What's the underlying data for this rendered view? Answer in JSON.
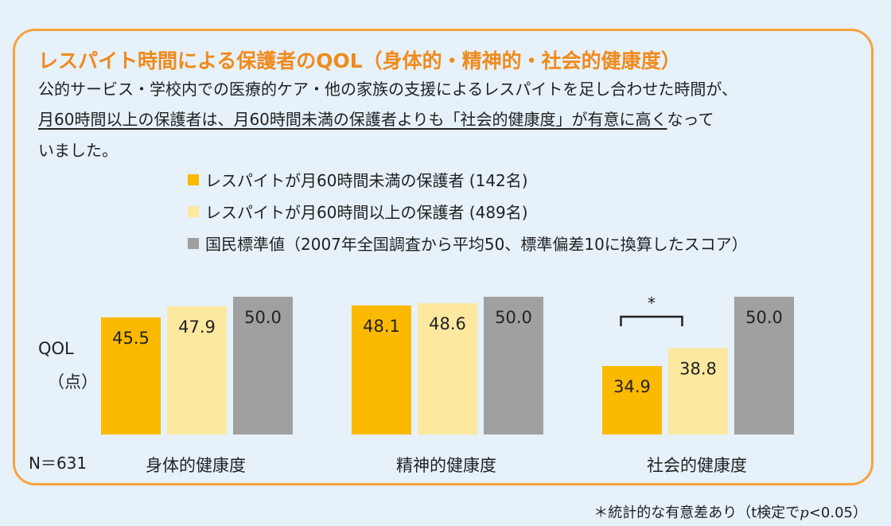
{
  "title": "レスパイト時間による保護者のQOL（身体的・精神的・社会的健康度）",
  "description": {
    "line1": "公的サービス・学校内での医療的ケア・他の家族の支援によるレスパイトを足し合わせた時間が、",
    "line2_underlined": "月60時間以上の保護者は、月60時間未満の保護者よりも「社会的健康度」が有意に高く",
    "line2_rest": "なって",
    "line3": "いました。"
  },
  "y_label_line1": "QOL",
  "y_label_line2": "（点）",
  "n_label": "N＝631",
  "significance_mark": "*",
  "footnote": {
    "prefix": "＊統計的な有意差あり（t検定で",
    "p": "p",
    "suffix": "<0.05）"
  },
  "colors": {
    "title": "#f08a1c",
    "frame": "#f6a33c",
    "series0": "#fbb900",
    "series1": "#fde8a0",
    "series2": "#a0a0a0",
    "background": "#e6f1f9"
  },
  "chart_data": {
    "type": "bar",
    "categories": [
      "身体的健康度",
      "精神的健康度",
      "社会的健康度"
    ],
    "series": [
      {
        "name": "レスパイトが月60時間未満の保護者 (142名)",
        "values": [
          45.5,
          48.1,
          34.9
        ]
      },
      {
        "name": "レスパイトが月60時間以上の保護者 (489名)",
        "values": [
          47.9,
          48.6,
          38.8
        ]
      },
      {
        "name": "国民標準値（2007年全国調査から平均50、標準偏差10に換算したスコア）",
        "values": [
          50.0,
          50.0,
          50.0
        ]
      }
    ],
    "ylabel": "QOL（点）",
    "ylim": [
      20,
      50.5
    ],
    "grid": false,
    "legend": "top",
    "significance": [
      {
        "category": "社会的健康度",
        "between": [
          0,
          1
        ],
        "mark": "*"
      }
    ]
  }
}
